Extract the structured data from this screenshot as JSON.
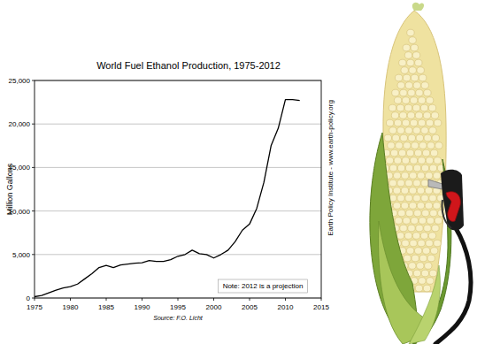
{
  "chart_data": {
    "type": "line",
    "title": "World Fuel Ethanol Production, 1975-2012",
    "y_label": "Million Gallons",
    "source": "Source: F.O. Licht",
    "annotations": [
      "Note: 2012 is a projection",
      "Earth Policy Institute - www.earth-policy.org"
    ],
    "x": [
      1975,
      1976,
      1977,
      1978,
      1979,
      1980,
      1981,
      1982,
      1983,
      1984,
      1985,
      1986,
      1987,
      1988,
      1989,
      1990,
      1991,
      1992,
      1993,
      1994,
      1995,
      1996,
      1997,
      1998,
      1999,
      2000,
      2001,
      2002,
      2003,
      2004,
      2005,
      2006,
      2007,
      2008,
      2009,
      2010,
      2011,
      2012
    ],
    "values": [
      150,
      300,
      600,
      900,
      1150,
      1300,
      1600,
      2200,
      2800,
      3500,
      3750,
      3500,
      3800,
      3900,
      4000,
      4050,
      4300,
      4200,
      4200,
      4400,
      4800,
      5000,
      5500,
      5100,
      5000,
      4600,
      5000,
      5500,
      6500,
      7800,
      8500,
      10300,
      13300,
      17500,
      19500,
      22800,
      22800,
      22700
    ],
    "color": "#000000",
    "xlim": [
      1975,
      2015
    ],
    "ylim": [
      0,
      25000
    ],
    "xticks": [
      1975,
      1980,
      1985,
      1990,
      1995,
      2000,
      2005,
      2010,
      2015
    ],
    "yticks": [
      0,
      {
        "value": 5000,
        "label": "5,000"
      },
      {
        "value": 10000,
        "label": "10,000"
      },
      {
        "value": 15000,
        "label": "15,000"
      },
      {
        "value": 20000,
        "label": "20,000"
      },
      {
        "value": 25000,
        "label": "25,000"
      }
    ],
    "grid": true
  }
}
